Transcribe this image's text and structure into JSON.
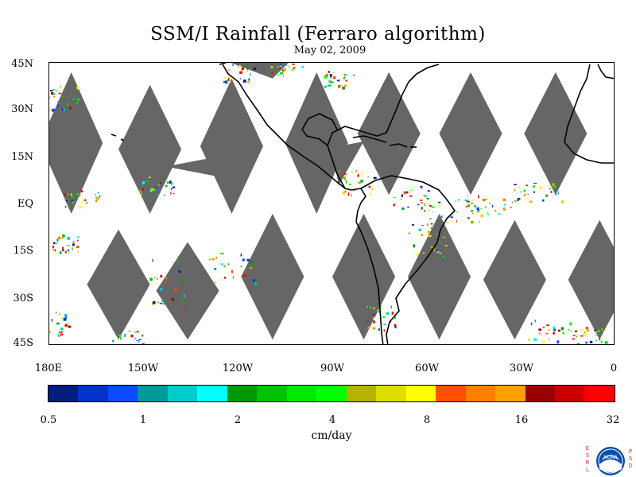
{
  "title": "SSM/I Rainfall (Ferraro algorithm)",
  "date": "May 02, 2009",
  "map": {
    "lat_labels": [
      "45N",
      "30N",
      "15N",
      "EQ",
      "15S",
      "30S",
      "45S"
    ],
    "lon_labels": [
      "180E",
      "150W",
      "120W",
      "90W",
      "60W",
      "30W",
      "0"
    ],
    "extent": {
      "lon": [
        -180,
        0
      ],
      "lat": [
        -45,
        45
      ]
    },
    "no_data_color": "#666666",
    "coastline_color": "#000000"
  },
  "colorbar": {
    "colors": [
      "#001f7a",
      "#0033c8",
      "#0a4bff",
      "#009999",
      "#00cccc",
      "#00ffff",
      "#009900",
      "#00c200",
      "#00e800",
      "#00ff00",
      "#b5b200",
      "#dddd00",
      "#ffff00",
      "#ff5000",
      "#ff8000",
      "#ffa000",
      "#990000",
      "#cc0000",
      "#ff0000"
    ],
    "tick_labels": [
      "0.5",
      "1",
      "2",
      "4",
      "8",
      "16",
      "32"
    ],
    "units": "cm/day"
  },
  "logo": {
    "left_letters": "ESRL",
    "right_letters": "PSD",
    "center_text": "NOAA"
  }
}
